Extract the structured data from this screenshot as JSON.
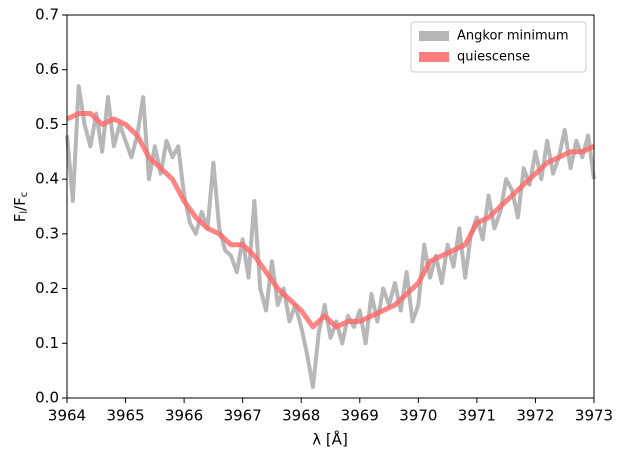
{
  "chart_data": {
    "type": "line",
    "xlabel": "λ [Å]",
    "ylabel": [
      "F",
      "l",
      "/F",
      "c"
    ],
    "xlim": [
      3964,
      3973
    ],
    "ylim": [
      0,
      0.7
    ],
    "xticks": [
      3964,
      3965,
      3966,
      3967,
      3968,
      3969,
      3970,
      3971,
      3972,
      3973
    ],
    "yticks": [
      {
        "value": 0,
        "label": "0.0"
      },
      0.1,
      0.2,
      0.3,
      0.4,
      0.5,
      0.6,
      0.7
    ],
    "legend": "upper right",
    "series": [
      {
        "name": "Angkor minimum",
        "color": "#aaaaaa",
        "x": [
          3964.0,
          3964.1,
          3964.2,
          3964.3,
          3964.4,
          3964.5,
          3964.6,
          3964.7,
          3964.8,
          3964.9,
          3965.0,
          3965.1,
          3965.2,
          3965.3,
          3965.4,
          3965.5,
          3965.6,
          3965.7,
          3965.8,
          3965.9,
          3966.0,
          3966.1,
          3966.2,
          3966.3,
          3966.4,
          3966.5,
          3966.6,
          3966.7,
          3966.8,
          3966.9,
          3967.0,
          3967.1,
          3967.2,
          3967.3,
          3967.4,
          3967.5,
          3967.6,
          3967.7,
          3967.8,
          3967.9,
          3968.0,
          3968.1,
          3968.2,
          3968.3,
          3968.4,
          3968.5,
          3968.6,
          3968.7,
          3968.8,
          3968.9,
          3969.0,
          3969.1,
          3969.2,
          3969.3,
          3969.4,
          3969.5,
          3969.6,
          3969.7,
          3969.8,
          3969.9,
          3970.0,
          3970.1,
          3970.2,
          3970.3,
          3970.4,
          3970.5,
          3970.6,
          3970.7,
          3970.8,
          3970.9,
          3971.0,
          3971.1,
          3971.2,
          3971.3,
          3971.4,
          3971.5,
          3971.6,
          3971.7,
          3971.8,
          3971.9,
          3972.0,
          3972.1,
          3972.2,
          3972.3,
          3972.4,
          3972.5,
          3972.6,
          3972.7,
          3972.8,
          3972.9,
          3973.0
        ],
        "values": [
          0.48,
          0.36,
          0.57,
          0.5,
          0.46,
          0.52,
          0.45,
          0.55,
          0.46,
          0.5,
          0.47,
          0.44,
          0.48,
          0.55,
          0.4,
          0.46,
          0.41,
          0.47,
          0.44,
          0.46,
          0.37,
          0.32,
          0.3,
          0.34,
          0.31,
          0.43,
          0.31,
          0.27,
          0.26,
          0.23,
          0.29,
          0.22,
          0.36,
          0.2,
          0.16,
          0.25,
          0.17,
          0.2,
          0.14,
          0.17,
          0.13,
          0.08,
          0.02,
          0.12,
          0.17,
          0.11,
          0.14,
          0.1,
          0.15,
          0.13,
          0.16,
          0.1,
          0.19,
          0.14,
          0.2,
          0.17,
          0.21,
          0.16,
          0.23,
          0.14,
          0.17,
          0.28,
          0.22,
          0.26,
          0.21,
          0.28,
          0.24,
          0.31,
          0.22,
          0.3,
          0.33,
          0.29,
          0.37,
          0.31,
          0.34,
          0.4,
          0.38,
          0.33,
          0.42,
          0.39,
          0.45,
          0.4,
          0.47,
          0.41,
          0.44,
          0.49,
          0.42,
          0.47,
          0.44,
          0.48,
          0.4
        ]
      },
      {
        "name": "quiescense",
        "color": "#ff6666",
        "x": [
          3964.0,
          3964.2,
          3964.4,
          3964.6,
          3964.8,
          3965.0,
          3965.2,
          3965.4,
          3965.6,
          3965.8,
          3966.0,
          3966.2,
          3966.4,
          3966.6,
          3966.8,
          3967.0,
          3967.2,
          3967.4,
          3967.6,
          3967.8,
          3968.0,
          3968.2,
          3968.4,
          3968.6,
          3968.8,
          3969.0,
          3969.2,
          3969.4,
          3969.6,
          3969.8,
          3970.0,
          3970.2,
          3970.4,
          3970.6,
          3970.8,
          3971.0,
          3971.2,
          3971.4,
          3971.6,
          3971.8,
          3972.0,
          3972.2,
          3972.4,
          3972.6,
          3972.8,
          3973.0
        ],
        "values": [
          0.51,
          0.52,
          0.52,
          0.5,
          0.51,
          0.5,
          0.48,
          0.44,
          0.42,
          0.4,
          0.36,
          0.33,
          0.31,
          0.3,
          0.28,
          0.28,
          0.26,
          0.23,
          0.2,
          0.18,
          0.16,
          0.13,
          0.15,
          0.13,
          0.14,
          0.14,
          0.15,
          0.16,
          0.17,
          0.19,
          0.21,
          0.25,
          0.26,
          0.27,
          0.28,
          0.32,
          0.33,
          0.35,
          0.37,
          0.39,
          0.41,
          0.43,
          0.44,
          0.45,
          0.45,
          0.46
        ]
      }
    ]
  }
}
